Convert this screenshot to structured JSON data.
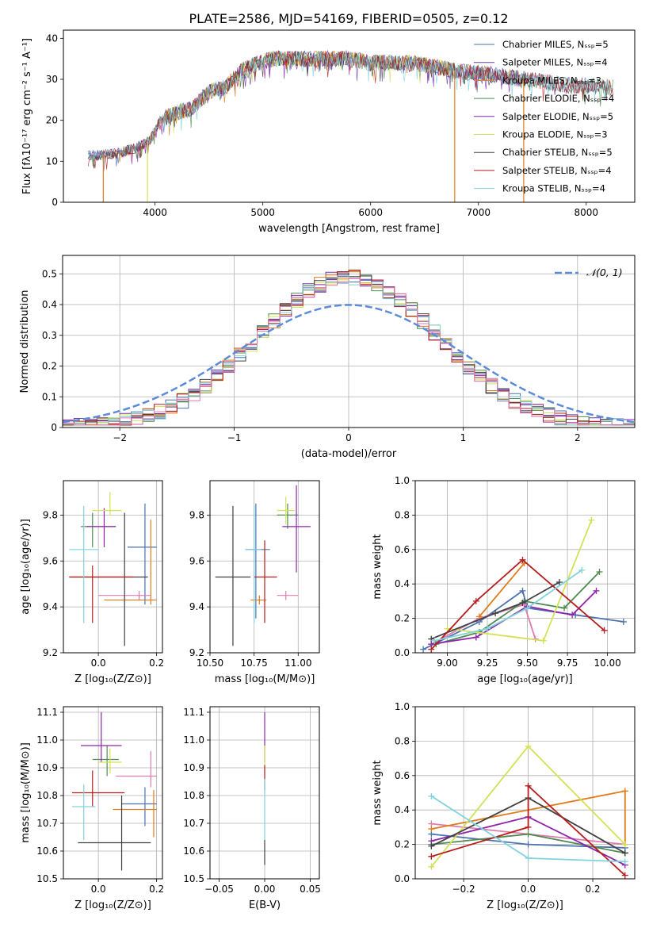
{
  "figure_title": "PLATE=2586, MJD=54169, FIBERID=0505, z=0.12",
  "colors": {
    "chab_miles": "#4c72b0",
    "salp_miles": "#6a3d9a",
    "krou_miles": "#e07b1a",
    "chab_elodie": "#4f8a4f",
    "salp_elodie": "#8e24aa",
    "krou_elodie": "#d4e157",
    "chab_stelib": "#404040",
    "salp_stelib": "#b71c1c",
    "krou_stelib": "#7fd3de",
    "normal_curve": "#5b8bd9",
    "hist_extra": "#e07bb0"
  },
  "chart_data": [
    {
      "id": "spectrum",
      "type": "line",
      "xlabel": "wavelength [Angstrom, rest frame]",
      "ylabel": "Flux [fλ10⁻¹⁷ erg cm⁻² s⁻¹ A⁻¹]",
      "xlim": [
        3150,
        8450
      ],
      "ylim": [
        0,
        42
      ],
      "xticks": [
        4000,
        5000,
        6000,
        7000,
        8000
      ],
      "yticks": [
        0,
        10,
        20,
        30,
        40
      ],
      "legend_position": "top-right",
      "legend": [
        {
          "label": "Chabrier MILES, Nₛₛₚ=5",
          "color_key": "chab_miles"
        },
        {
          "label": "Salpeter MILES, Nₛₛₚ=4",
          "color_key": "salp_miles"
        },
        {
          "label": "Kroupa MILES, Nₛₛₚ=3",
          "color_key": "krou_miles"
        },
        {
          "label": "Chabrier ELODIE, Nₛₛₚ=4",
          "color_key": "chab_elodie"
        },
        {
          "label": "Salpeter ELODIE, Nₛₛₚ=5",
          "color_key": "salp_elodie"
        },
        {
          "label": "Kroupa ELODIE, Nₛₛₚ=3",
          "color_key": "krou_elodie"
        },
        {
          "label": "Chabrier STELIB, Nₛₛₚ=5",
          "color_key": "chab_stelib"
        },
        {
          "label": "Salpeter STELIB, Nₛₛₚ=4",
          "color_key": "salp_stelib"
        },
        {
          "label": "Kroupa STELIB, Nₛₛₚ=4",
          "color_key": "krou_stelib"
        }
      ],
      "continuum": [
        [
          3380,
          11.5
        ],
        [
          3500,
          11.5
        ],
        [
          3650,
          12
        ],
        [
          3800,
          13
        ],
        [
          3950,
          15
        ],
        [
          4050,
          20
        ],
        [
          4200,
          22
        ],
        [
          4350,
          23
        ],
        [
          4500,
          27
        ],
        [
          4650,
          28
        ],
        [
          4800,
          32
        ],
        [
          4950,
          34
        ],
        [
          5100,
          35
        ],
        [
          5300,
          35
        ],
        [
          5500,
          35
        ],
        [
          5800,
          35
        ],
        [
          6000,
          34
        ],
        [
          6200,
          34
        ],
        [
          6400,
          34
        ],
        [
          6600,
          33
        ],
        [
          6800,
          32
        ],
        [
          7000,
          31.5
        ],
        [
          7200,
          31
        ],
        [
          7400,
          30
        ],
        [
          7600,
          29.5
        ],
        [
          7800,
          28.5
        ],
        [
          8000,
          28.5
        ],
        [
          8250,
          28
        ]
      ],
      "drop_lines": [
        [
          3520,
          "krou_miles"
        ],
        [
          3930,
          "krou_elodie"
        ],
        [
          6780,
          "krou_miles"
        ],
        [
          7420,
          "krou_miles"
        ]
      ]
    },
    {
      "id": "residual_hist",
      "type": "histogram",
      "xlabel": "(data-model)/error",
      "ylabel": "Normed distribution",
      "xlim": [
        -2.5,
        2.5
      ],
      "ylim": [
        0,
        0.56
      ],
      "xticks": [
        -2,
        -1,
        0,
        1,
        2
      ],
      "yticks": [
        0.0,
        0.1,
        0.2,
        0.3,
        0.4,
        0.5
      ],
      "grid": true,
      "legend_position": "top-right",
      "legend": [
        {
          "label": "𝒩(0, 1)",
          "color_key": "normal_curve"
        }
      ],
      "bin_width": 0.1,
      "bin_start": -2.5,
      "nbins": 50
    },
    {
      "id": "age_vs_Z",
      "type": "errorbar",
      "xlabel": "Z [log₁₀(Z/Z⊙)]",
      "ylabel": "age  [log₁₀(age/yr)]",
      "xlim": [
        -0.12,
        0.22
      ],
      "ylim": [
        9.2,
        9.95
      ],
      "xticks": [
        0.0,
        0.2
      ],
      "xtick_labels": [
        "0.0",
        "0.2"
      ],
      "yticks": [
        9.2,
        9.4,
        9.6,
        9.8
      ],
      "grid": true,
      "points": [
        {
          "x": 0.16,
          "y": 9.66,
          "xerr": [
            0.06,
            0.04
          ],
          "yerr": [
            0.25,
            0.19
          ],
          "color_key": "chab_miles"
        },
        {
          "x": 0.14,
          "y": 9.45,
          "xerr": [
            0.14,
            0.04
          ],
          "yerr": [
            0.02,
            0.02
          ],
          "color_key": "hist_extra"
        },
        {
          "x": 0.18,
          "y": 9.43,
          "xerr": [
            0.16,
            0.02
          ],
          "yerr": [
            0.02,
            0.35
          ],
          "color_key": "krou_miles"
        },
        {
          "x": -0.02,
          "y": 9.75,
          "xerr": [
            0.04,
            0.08
          ],
          "yerr": [
            0.09,
            0.06
          ],
          "color_key": "chab_elodie"
        },
        {
          "x": 0.02,
          "y": 9.75,
          "xerr": [
            0.06,
            0.04
          ],
          "yerr": [
            0.09,
            0.08
          ],
          "color_key": "salp_elodie"
        },
        {
          "x": 0.04,
          "y": 9.82,
          "xerr": [
            0.06,
            0.04
          ],
          "yerr": [
            0.02,
            0.08
          ],
          "color_key": "krou_elodie"
        },
        {
          "x": 0.09,
          "y": 9.53,
          "xerr": [
            0.19,
            0.08
          ],
          "yerr": [
            0.3,
            0.28
          ],
          "color_key": "chab_stelib"
        },
        {
          "x": -0.02,
          "y": 9.53,
          "xerr": [
            0.08,
            0.14
          ],
          "yerr": [
            0.2,
            0.05
          ],
          "color_key": "salp_stelib"
        },
        {
          "x": -0.05,
          "y": 9.65,
          "xerr": [
            0.05,
            0.05
          ],
          "yerr": [
            0.32,
            0.19
          ],
          "color_key": "krou_stelib"
        }
      ]
    },
    {
      "id": "age_vs_mass",
      "type": "errorbar",
      "xlabel": "mass [log₁₀(M/M⊙)]",
      "ylabel": "",
      "xlim": [
        10.5,
        11.12
      ],
      "ylim": [
        9.2,
        9.95
      ],
      "xticks": [
        10.5,
        10.75,
        11.0
      ],
      "xtick_labels": [
        "10.50",
        "10.75",
        "11.00"
      ],
      "yticks": [
        9.2,
        9.4,
        9.6,
        9.8
      ],
      "grid": true,
      "points": [
        {
          "x": 10.76,
          "y": 9.65,
          "xerr": [
            0.06,
            0.08
          ],
          "yerr": [
            0.3,
            0.2
          ],
          "color_key": "chab_miles"
        },
        {
          "x": 10.93,
          "y": 9.45,
          "xerr": [
            0.05,
            0.07
          ],
          "yerr": [
            0.02,
            0.02
          ],
          "color_key": "hist_extra"
        },
        {
          "x": 10.78,
          "y": 9.43,
          "xerr": [
            0.05,
            0.04
          ],
          "yerr": [
            0.02,
            0.02
          ],
          "color_key": "krou_miles"
        },
        {
          "x": 10.94,
          "y": 9.8,
          "xerr": [
            0.06,
            0.06
          ],
          "yerr": [
            0.06,
            0.05
          ],
          "color_key": "chab_elodie"
        },
        {
          "x": 10.99,
          "y": 9.75,
          "xerr": [
            0.08,
            0.08
          ],
          "yerr": [
            0.2,
            0.18
          ],
          "color_key": "salp_elodie"
        },
        {
          "x": 10.93,
          "y": 9.82,
          "xerr": [
            0.05,
            0.05
          ],
          "yerr": [
            0.06,
            0.06
          ],
          "color_key": "krou_elodie"
        },
        {
          "x": 10.63,
          "y": 9.53,
          "xerr": [
            0.1,
            0.1
          ],
          "yerr": [
            0.3,
            0.31
          ],
          "color_key": "chab_stelib"
        },
        {
          "x": 10.81,
          "y": 9.53,
          "xerr": [
            0.06,
            0.07
          ],
          "yerr": [
            0.2,
            0.16
          ],
          "color_key": "salp_stelib"
        },
        {
          "x": 10.75,
          "y": 9.65,
          "xerr": [
            0.05,
            0.04
          ],
          "yerr": [
            0.32,
            0.19
          ],
          "color_key": "krou_stelib"
        }
      ]
    },
    {
      "id": "weight_vs_age",
      "type": "line",
      "xlabel": "age  [log₁₀(age/yr)]",
      "ylabel": "mass weight",
      "xlim": [
        8.8,
        10.17
      ],
      "ylim": [
        0.0,
        1.0
      ],
      "xticks": [
        9.0,
        9.25,
        9.5,
        9.75,
        10.0
      ],
      "xtick_labels": [
        "9.00",
        "9.25",
        "9.50",
        "9.75",
        "10.00"
      ],
      "yticks": [
        0.0,
        0.2,
        0.4,
        0.6,
        0.8,
        1.0
      ],
      "grid": true,
      "series": [
        {
          "color_key": "chab_miles",
          "x": [
            8.85,
            9.2,
            9.47,
            9.5,
            9.8,
            10.1
          ],
          "y": [
            0.02,
            0.18,
            0.36,
            0.26,
            0.22,
            0.18
          ]
        },
        {
          "color_key": "hist_extra",
          "x": [
            8.9,
            9.2,
            9.48,
            9.55
          ],
          "y": [
            0.05,
            0.2,
            0.28,
            0.08
          ]
        },
        {
          "color_key": "krou_miles",
          "x": [
            9.2,
            9.48
          ],
          "y": [
            0.21,
            0.52
          ]
        },
        {
          "color_key": "chab_elodie",
          "x": [
            8.93,
            9.2,
            9.48,
            9.73,
            9.95
          ],
          "y": [
            0.05,
            0.12,
            0.3,
            0.26,
            0.47
          ]
        },
        {
          "color_key": "salp_elodie",
          "x": [
            8.9,
            9.18,
            9.5,
            9.78,
            9.93
          ],
          "y": [
            0.05,
            0.09,
            0.27,
            0.22,
            0.36
          ]
        },
        {
          "color_key": "krou_elodie",
          "x": [
            9.0,
            9.6,
            9.9
          ],
          "y": [
            0.14,
            0.07,
            0.77
          ]
        },
        {
          "color_key": "chab_stelib",
          "x": [
            8.9,
            9.3,
            9.47,
            9.7
          ],
          "y": [
            0.08,
            0.23,
            0.29,
            0.41
          ]
        },
        {
          "color_key": "salp_stelib",
          "x": [
            8.9,
            9.18,
            9.47,
            9.98
          ],
          "y": [
            0.02,
            0.3,
            0.54,
            0.13
          ]
        },
        {
          "color_key": "krou_stelib",
          "x": [
            8.92,
            9.25,
            9.5,
            9.84
          ],
          "y": [
            0.07,
            0.14,
            0.26,
            0.48
          ]
        }
      ]
    },
    {
      "id": "mass_vs_Z",
      "type": "errorbar",
      "xlabel": "Z [log₁₀(Z/Z⊙)]",
      "ylabel": "mass [log₁₀(M/M⊙)]",
      "xlim": [
        -0.12,
        0.22
      ],
      "ylim": [
        10.5,
        11.12
      ],
      "xticks": [
        0.0,
        0.2
      ],
      "xtick_labels": [
        "0.0",
        "0.2"
      ],
      "yticks": [
        10.5,
        10.6,
        10.7,
        10.8,
        10.9,
        11.0,
        11.1
      ],
      "grid": true,
      "points": [
        {
          "x": 0.16,
          "y": 10.77,
          "xerr": [
            0.08,
            0.04
          ],
          "yerr": [
            0.08,
            0.06
          ],
          "color_key": "chab_miles"
        },
        {
          "x": 0.18,
          "y": 10.87,
          "xerr": [
            0.12,
            0.02
          ],
          "yerr": [
            0.04,
            0.09
          ],
          "color_key": "hist_extra"
        },
        {
          "x": 0.19,
          "y": 10.75,
          "xerr": [
            0.14,
            0.01
          ],
          "yerr": [
            0.1,
            0.07
          ],
          "color_key": "krou_miles"
        },
        {
          "x": 0.03,
          "y": 10.93,
          "xerr": [
            0.05,
            0.04
          ],
          "yerr": [
            0.06,
            0.05
          ],
          "color_key": "chab_elodie"
        },
        {
          "x": 0.01,
          "y": 10.98,
          "xerr": [
            0.07,
            0.07
          ],
          "yerr": [
            0.06,
            0.12
          ],
          "color_key": "salp_elodie"
        },
        {
          "x": 0.04,
          "y": 10.92,
          "xerr": [
            0.04,
            0.04
          ],
          "yerr": [
            0.04,
            0.05
          ],
          "color_key": "krou_elodie"
        },
        {
          "x": 0.08,
          "y": 10.63,
          "xerr": [
            0.15,
            0.1
          ],
          "yerr": [
            0.1,
            0.17
          ],
          "color_key": "chab_stelib"
        },
        {
          "x": -0.02,
          "y": 10.81,
          "xerr": [
            0.07,
            0.11
          ],
          "yerr": [
            0.05,
            0.08
          ],
          "color_key": "salp_stelib"
        },
        {
          "x": -0.05,
          "y": 10.76,
          "xerr": [
            0.04,
            0.04
          ],
          "yerr": [
            0.12,
            0.08
          ],
          "color_key": "krou_stelib"
        }
      ]
    },
    {
      "id": "mass_vs_ebv",
      "type": "errorbar",
      "xlabel": "E(B-V)",
      "ylabel": "",
      "xlim": [
        -0.06,
        0.06
      ],
      "ylim": [
        10.5,
        11.12
      ],
      "xticks": [
        -0.05,
        0.0,
        0.05
      ],
      "xtick_labels": [
        "−0.05",
        "0.00",
        "0.05"
      ],
      "yticks": [
        10.5,
        10.6,
        10.7,
        10.8,
        10.9,
        11.0,
        11.1
      ],
      "grid": true,
      "points": [
        {
          "x": 0.0,
          "y": 10.98,
          "xerr": [
            0,
            0
          ],
          "yerr": [
            0.06,
            0.12
          ],
          "color_key": "salp_elodie"
        },
        {
          "x": 0.0,
          "y": 10.92,
          "xerr": [
            0,
            0
          ],
          "yerr": [
            0.04,
            0.06
          ],
          "color_key": "krou_elodie"
        },
        {
          "x": 0.0,
          "y": 10.87,
          "xerr": [
            0,
            0
          ],
          "yerr": [
            0.05,
            0.04
          ],
          "color_key": "salp_stelib"
        },
        {
          "x": 0.0,
          "y": 10.76,
          "xerr": [
            0,
            0
          ],
          "yerr": [
            0.12,
            0.1
          ],
          "color_key": "krou_stelib"
        },
        {
          "x": 0.0,
          "y": 10.6,
          "xerr": [
            0,
            0
          ],
          "yerr": [
            0.05,
            0.04
          ],
          "color_key": "chab_stelib"
        }
      ]
    },
    {
      "id": "weight_vs_Z",
      "type": "line",
      "xlabel": "Z [log₁₀(Z/Z⊙)]",
      "ylabel": "mass weight",
      "xlim": [
        -0.35,
        0.33
      ],
      "ylim": [
        0.0,
        1.0
      ],
      "xticks": [
        -0.2,
        0.0,
        0.2
      ],
      "xtick_labels": [
        "−0.2",
        "0.0",
        "0.2"
      ],
      "yticks": [
        0.0,
        0.2,
        0.4,
        0.6,
        0.8,
        1.0
      ],
      "grid": true,
      "series": [
        {
          "color_key": "chab_miles",
          "x": [
            -0.3,
            0.0,
            0.3
          ],
          "y": [
            0.26,
            0.2,
            0.18
          ]
        },
        {
          "color_key": "hist_extra",
          "x": [
            -0.3,
            0.3
          ],
          "y": [
            0.32,
            0.2
          ]
        },
        {
          "color_key": "krou_miles",
          "x": [
            -0.3,
            0.3,
            0.3
          ],
          "y": [
            0.29,
            0.51,
            0.2
          ]
        },
        {
          "color_key": "chab_elodie",
          "x": [
            -0.3,
            0.0,
            0.3
          ],
          "y": [
            0.2,
            0.26,
            0.15
          ]
        },
        {
          "color_key": "salp_elodie",
          "x": [
            -0.3,
            0.0,
            0.3
          ],
          "y": [
            0.22,
            0.36,
            0.08
          ]
        },
        {
          "color_key": "krou_elodie",
          "x": [
            -0.3,
            0.0,
            0.3
          ],
          "y": [
            0.07,
            0.77,
            0.2
          ]
        },
        {
          "color_key": "chab_stelib",
          "x": [
            -0.3,
            0.0,
            0.3
          ],
          "y": [
            0.19,
            0.47,
            0.15
          ]
        },
        {
          "color_key": "salp_stelib",
          "x": [
            -0.3,
            0.0,
            0.0,
            0.3
          ],
          "y": [
            0.13,
            0.3,
            0.54,
            0.02
          ]
        },
        {
          "color_key": "krou_stelib",
          "x": [
            -0.3,
            0.0,
            0.3
          ],
          "y": [
            0.48,
            0.12,
            0.1
          ]
        }
      ]
    }
  ]
}
